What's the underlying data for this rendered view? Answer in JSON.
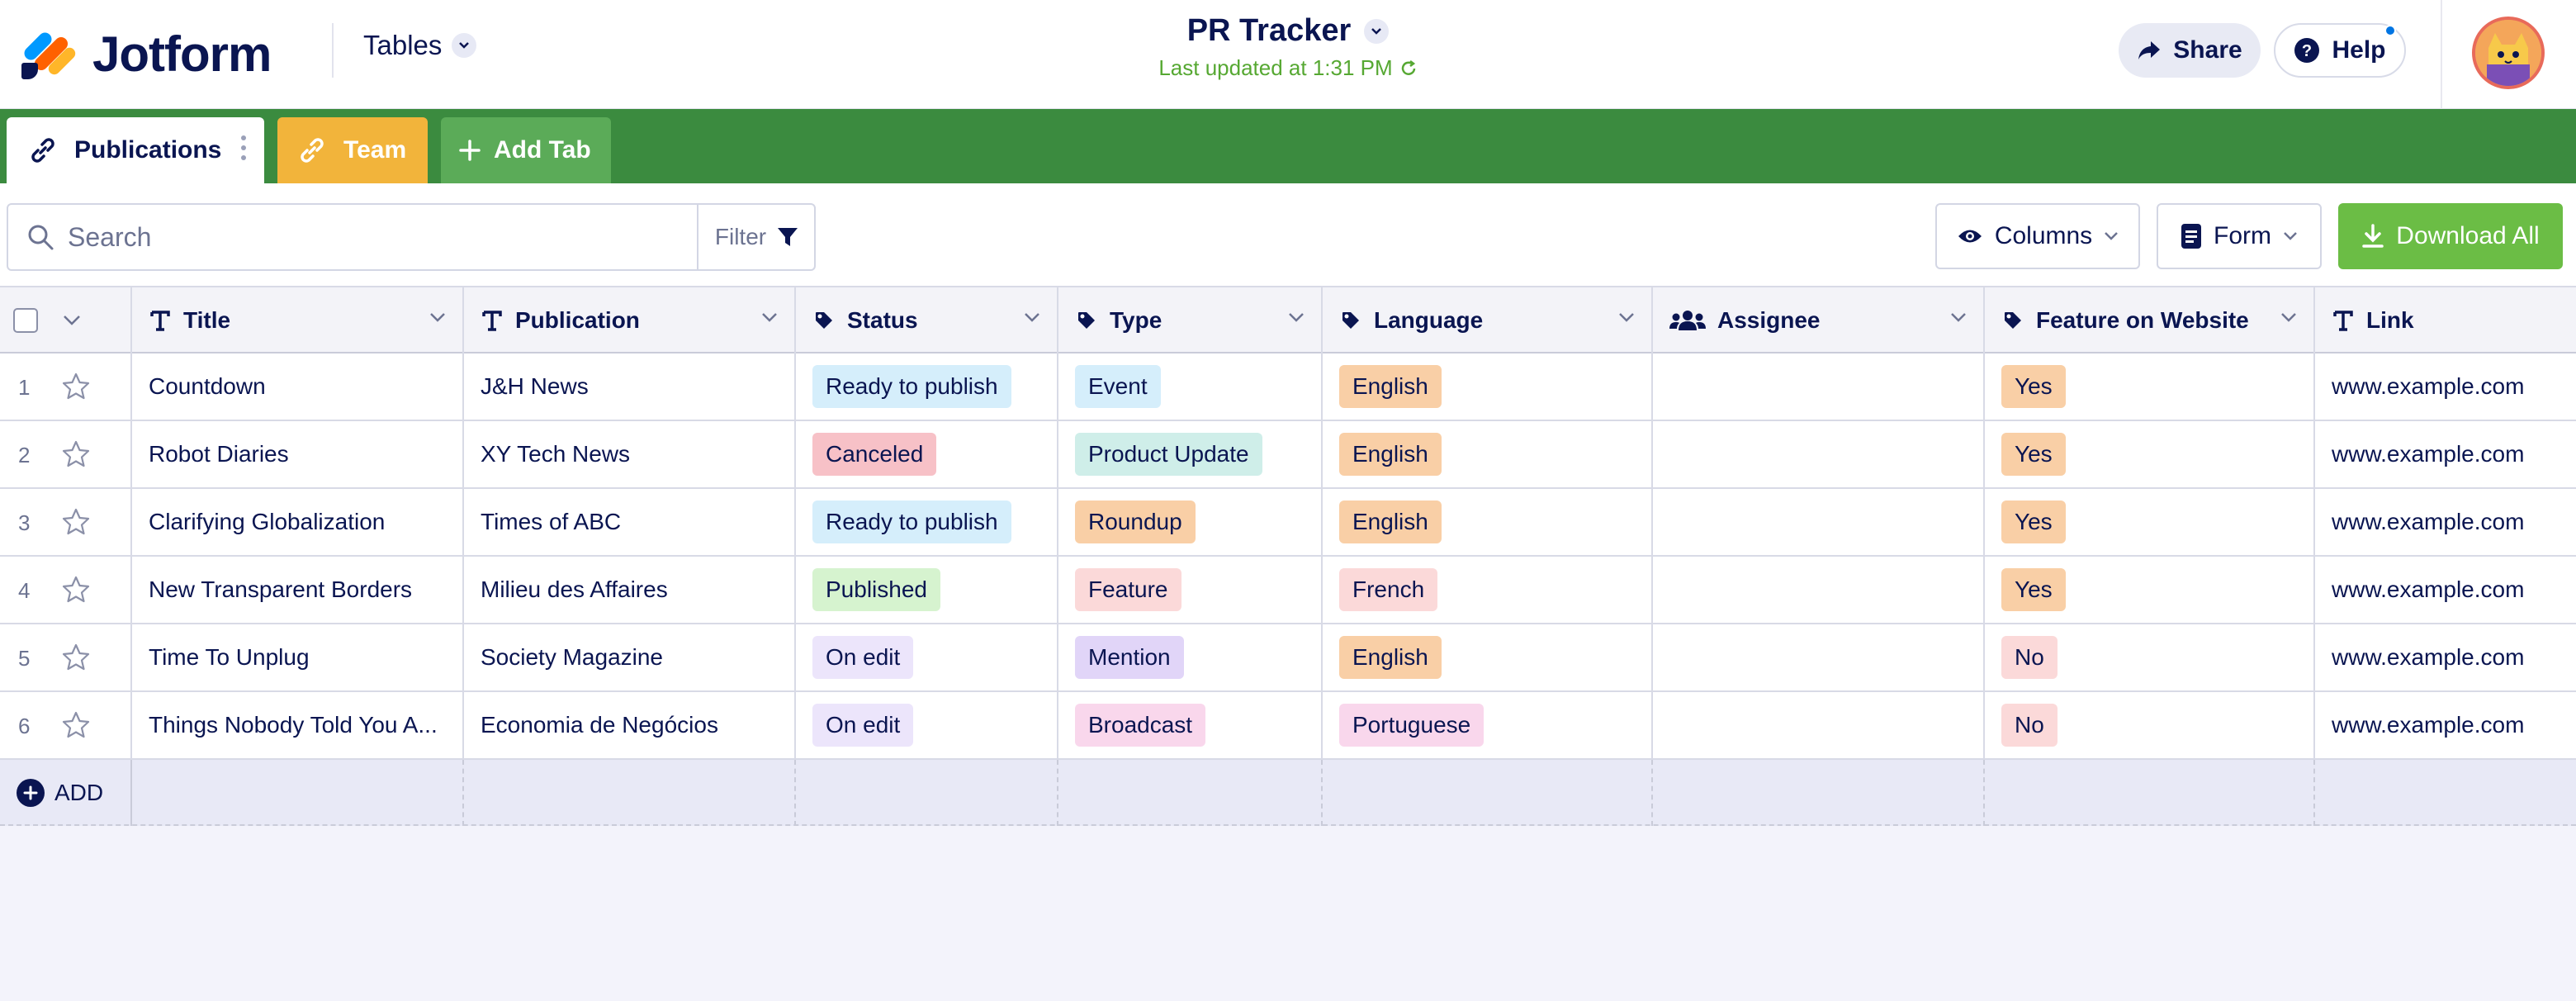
{
  "header": {
    "brand": "Jotform",
    "tables_label": "Tables",
    "title": "PR Tracker",
    "last_updated": "Last updated at 1:31 PM",
    "share_label": "Share",
    "help_label": "Help"
  },
  "tabs": [
    {
      "label": "Publications",
      "color": "#ffffff"
    },
    {
      "label": "Team",
      "color": "#f2b43b"
    },
    {
      "label": "Add Tab",
      "color": "#5bab58"
    }
  ],
  "toolbar": {
    "search_placeholder": "Search",
    "filter_label": "Filter",
    "columns_label": "Columns",
    "form_label": "Form",
    "download_label": "Download All"
  },
  "columns": [
    "Title",
    "Publication",
    "Status",
    "Type",
    "Language",
    "Assignee",
    "Feature on Website",
    "Link"
  ],
  "rows": [
    {
      "num": "1",
      "title": "Countdown",
      "publication": "J&H News",
      "status": "Ready to publish",
      "type": "Event",
      "language": "English",
      "assignee": "",
      "feature": "Yes",
      "link": "www.example.com"
    },
    {
      "num": "2",
      "title": "Robot Diaries",
      "publication": "XY Tech News",
      "status": "Canceled",
      "type": "Product Update",
      "language": "English",
      "assignee": "",
      "feature": "Yes",
      "link": "www.example.com"
    },
    {
      "num": "3",
      "title": "Clarifying Globalization",
      "publication": "Times of ABC",
      "status": "Ready to publish",
      "type": "Roundup",
      "language": "English",
      "assignee": "",
      "feature": "Yes",
      "link": "www.example.com"
    },
    {
      "num": "4",
      "title": "New Transparent Borders",
      "publication": "Milieu des Affaires",
      "status": "Published",
      "type": "Feature",
      "language": "French",
      "assignee": "",
      "feature": "Yes",
      "link": "www.example.com"
    },
    {
      "num": "5",
      "title": "Time To Unplug",
      "publication": "Society Magazine",
      "status": "On edit",
      "type": "Mention",
      "language": "English",
      "assignee": "",
      "feature": "No",
      "link": "www.example.com"
    },
    {
      "num": "6",
      "title": "Things Nobody Told You A...",
      "publication": "Economia de Negócios",
      "status": "On edit",
      "type": "Broadcast",
      "language": "Portuguese",
      "assignee": "",
      "feature": "No",
      "link": "www.example.com"
    }
  ],
  "add_row_label": "ADD",
  "tag_colors": {
    "Ready to publish": "#d5eefb",
    "Canceled": "#f7c1c7",
    "Published": "#d6f3cf",
    "On edit": "#ece5fb",
    "Event": "#d5eefb",
    "Product Update": "#cfeee9",
    "Roundup": "#f9cfa6",
    "Feature": "#fbd9d9",
    "Mention": "#e1d5f8",
    "Broadcast": "#f9d7ec",
    "English": "#f9cfa6",
    "French": "#fbd9d9",
    "Portuguese": "#f9d7ec",
    "Yes": "#f9cfa6",
    "No": "#fbd9d9"
  },
  "colors": {
    "header_bg": "#ffffff",
    "tabbar_bg": "#3b8b3f",
    "download_bg": "#6bbd45",
    "text": "#0a1551",
    "updated_text": "#56a832"
  }
}
